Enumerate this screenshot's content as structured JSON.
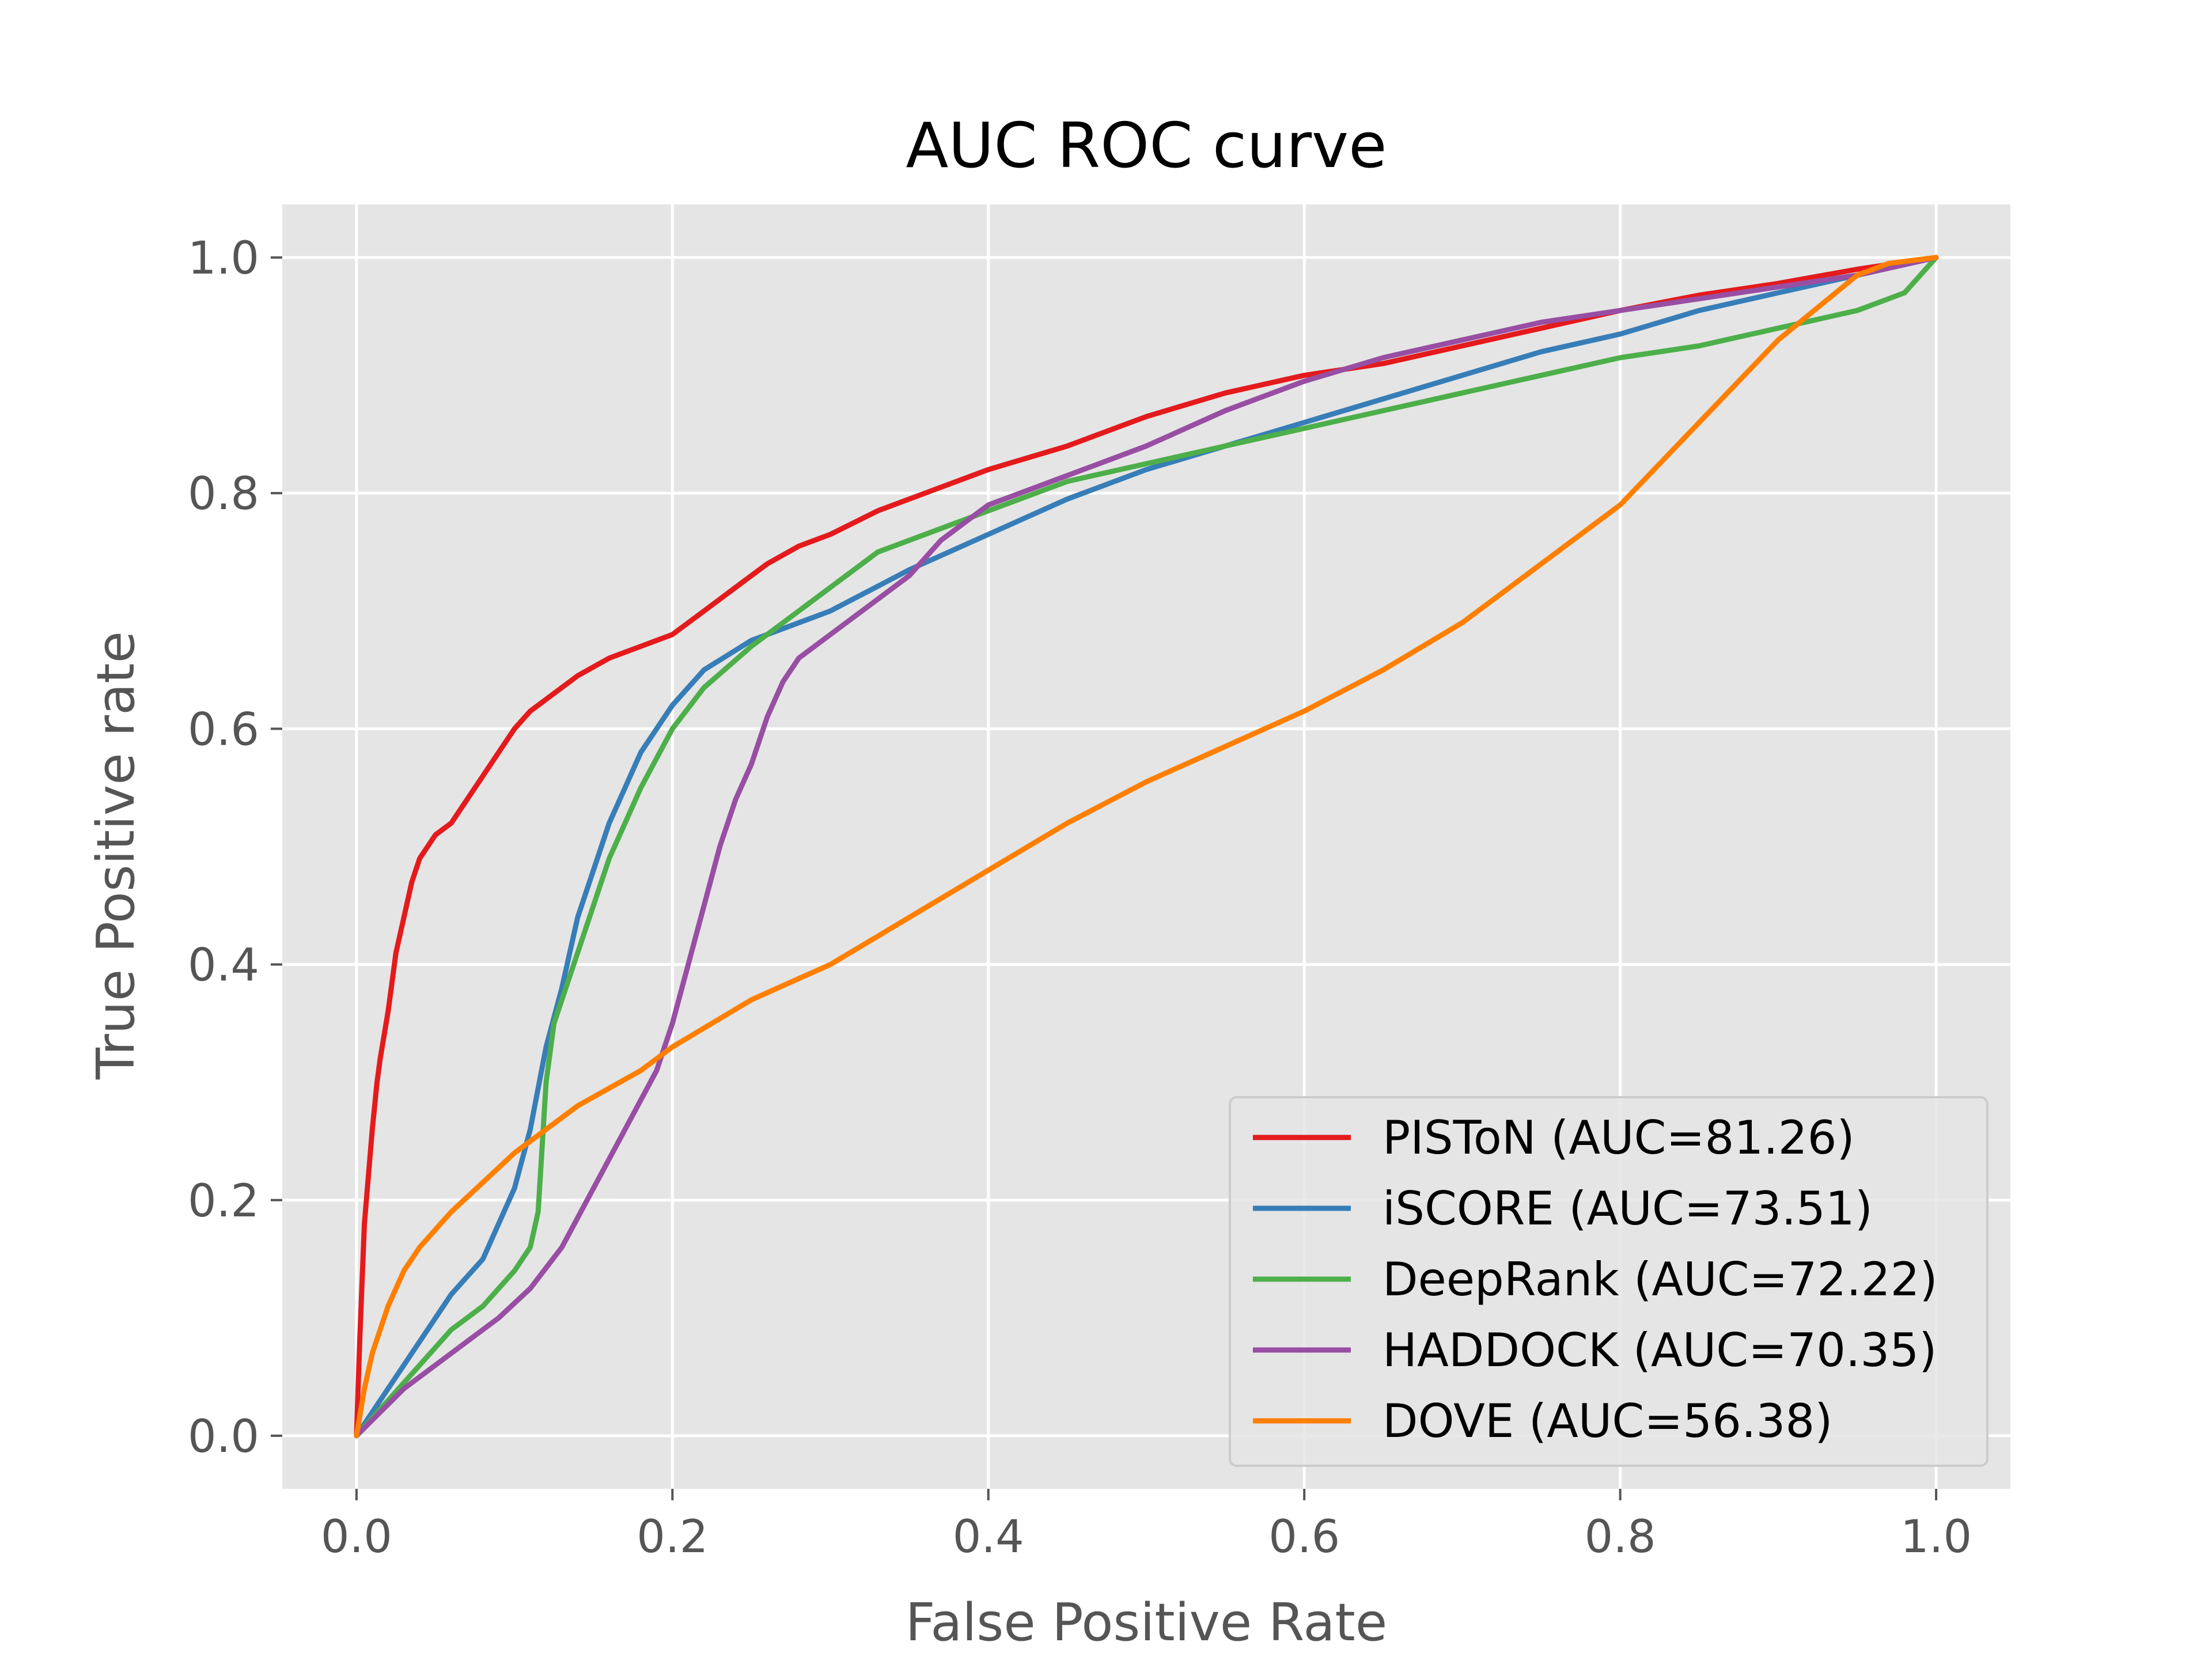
{
  "chart_data": {
    "type": "line",
    "title": "AUC ROC curve",
    "xlabel": "False Positive Rate",
    "ylabel": "True Positive rate",
    "xlim": [
      -0.047,
      1.047
    ],
    "ylim": [
      -0.045,
      1.045
    ],
    "xticks": [
      0.0,
      0.2,
      0.4,
      0.6,
      0.8,
      1.0
    ],
    "yticks": [
      0.0,
      0.2,
      0.4,
      0.6,
      0.8,
      1.0
    ],
    "xtick_labels": [
      "0.0",
      "0.2",
      "0.4",
      "0.6",
      "0.8",
      "1.0"
    ],
    "ytick_labels": [
      "0.0",
      "0.2",
      "0.4",
      "0.6",
      "0.8",
      "1.0"
    ],
    "grid": true,
    "legend_position": "lower-right",
    "background_color": "#e5e5e5",
    "grid_color": "#ffffff",
    "series": [
      {
        "name": "PISToN (AUC=81.26)",
        "color": "#e41a1c",
        "x": [
          0.0,
          0.002,
          0.005,
          0.01,
          0.013,
          0.015,
          0.02,
          0.025,
          0.03,
          0.035,
          0.04,
          0.045,
          0.05,
          0.06,
          0.07,
          0.08,
          0.09,
          0.1,
          0.11,
          0.12,
          0.14,
          0.16,
          0.18,
          0.2,
          0.22,
          0.24,
          0.26,
          0.28,
          0.3,
          0.33,
          0.36,
          0.4,
          0.45,
          0.5,
          0.55,
          0.6,
          0.65,
          0.7,
          0.75,
          0.8,
          0.85,
          0.9,
          0.95,
          1.0
        ],
        "y": [
          0.0,
          0.08,
          0.18,
          0.26,
          0.3,
          0.32,
          0.36,
          0.41,
          0.44,
          0.47,
          0.49,
          0.5,
          0.51,
          0.52,
          0.54,
          0.56,
          0.58,
          0.6,
          0.615,
          0.625,
          0.645,
          0.66,
          0.67,
          0.68,
          0.7,
          0.72,
          0.74,
          0.755,
          0.765,
          0.785,
          0.8,
          0.82,
          0.84,
          0.865,
          0.885,
          0.9,
          0.91,
          0.925,
          0.94,
          0.955,
          0.968,
          0.978,
          0.99,
          1.0
        ]
      },
      {
        "name": "iSCORE (AUC=73.51)",
        "color": "#377eb8",
        "x": [
          0.0,
          0.02,
          0.04,
          0.06,
          0.08,
          0.09,
          0.1,
          0.11,
          0.12,
          0.13,
          0.14,
          0.15,
          0.16,
          0.17,
          0.18,
          0.2,
          0.22,
          0.25,
          0.3,
          0.35,
          0.4,
          0.45,
          0.5,
          0.55,
          0.6,
          0.65,
          0.7,
          0.75,
          0.8,
          0.85,
          0.9,
          0.95,
          1.0
        ],
        "y": [
          0.0,
          0.04,
          0.08,
          0.12,
          0.15,
          0.18,
          0.21,
          0.26,
          0.33,
          0.38,
          0.44,
          0.48,
          0.52,
          0.55,
          0.58,
          0.62,
          0.65,
          0.675,
          0.7,
          0.735,
          0.765,
          0.795,
          0.82,
          0.84,
          0.86,
          0.88,
          0.9,
          0.92,
          0.935,
          0.955,
          0.97,
          0.985,
          1.0
        ]
      },
      {
        "name": "DeepRank (AUC=72.22)",
        "color": "#4daf4a",
        "x": [
          0.0,
          0.02,
          0.04,
          0.06,
          0.08,
          0.1,
          0.11,
          0.115,
          0.12,
          0.125,
          0.13,
          0.14,
          0.15,
          0.16,
          0.17,
          0.18,
          0.2,
          0.22,
          0.25,
          0.28,
          0.3,
          0.33,
          0.37,
          0.4,
          0.45,
          0.5,
          0.55,
          0.6,
          0.65,
          0.7,
          0.75,
          0.8,
          0.85,
          0.9,
          0.95,
          0.98,
          1.0
        ],
        "y": [
          0.0,
          0.03,
          0.06,
          0.09,
          0.11,
          0.14,
          0.16,
          0.19,
          0.3,
          0.35,
          0.37,
          0.41,
          0.45,
          0.49,
          0.52,
          0.55,
          0.6,
          0.635,
          0.67,
          0.7,
          0.72,
          0.75,
          0.77,
          0.785,
          0.81,
          0.825,
          0.84,
          0.855,
          0.87,
          0.885,
          0.9,
          0.915,
          0.925,
          0.94,
          0.955,
          0.97,
          1.0
        ]
      },
      {
        "name": "HADDOCK (AUC=70.35)",
        "color": "#984ea3",
        "x": [
          0.0,
          0.03,
          0.06,
          0.09,
          0.11,
          0.13,
          0.15,
          0.17,
          0.19,
          0.2,
          0.21,
          0.22,
          0.23,
          0.24,
          0.25,
          0.26,
          0.27,
          0.28,
          0.3,
          0.32,
          0.35,
          0.37,
          0.4,
          0.45,
          0.5,
          0.55,
          0.6,
          0.65,
          0.7,
          0.75,
          0.8,
          0.85,
          0.9,
          0.95,
          1.0
        ],
        "y": [
          0.0,
          0.04,
          0.07,
          0.1,
          0.125,
          0.16,
          0.21,
          0.26,
          0.31,
          0.35,
          0.4,
          0.45,
          0.5,
          0.54,
          0.57,
          0.61,
          0.64,
          0.66,
          0.68,
          0.7,
          0.73,
          0.76,
          0.79,
          0.815,
          0.84,
          0.87,
          0.895,
          0.915,
          0.93,
          0.945,
          0.955,
          0.965,
          0.975,
          0.985,
          1.0
        ]
      },
      {
        "name": "DOVE (AUC=56.38)",
        "color": "#ff7f00",
        "x": [
          0.0,
          0.005,
          0.01,
          0.02,
          0.03,
          0.04,
          0.06,
          0.08,
          0.1,
          0.12,
          0.14,
          0.16,
          0.18,
          0.2,
          0.25,
          0.3,
          0.35,
          0.4,
          0.45,
          0.5,
          0.55,
          0.6,
          0.65,
          0.7,
          0.75,
          0.8,
          0.85,
          0.9,
          0.95,
          0.97,
          1.0
        ],
        "y": [
          0.0,
          0.04,
          0.07,
          0.11,
          0.14,
          0.16,
          0.19,
          0.215,
          0.24,
          0.26,
          0.28,
          0.295,
          0.31,
          0.33,
          0.37,
          0.4,
          0.44,
          0.48,
          0.52,
          0.555,
          0.585,
          0.615,
          0.65,
          0.69,
          0.74,
          0.79,
          0.86,
          0.93,
          0.985,
          0.995,
          1.0
        ]
      }
    ]
  }
}
